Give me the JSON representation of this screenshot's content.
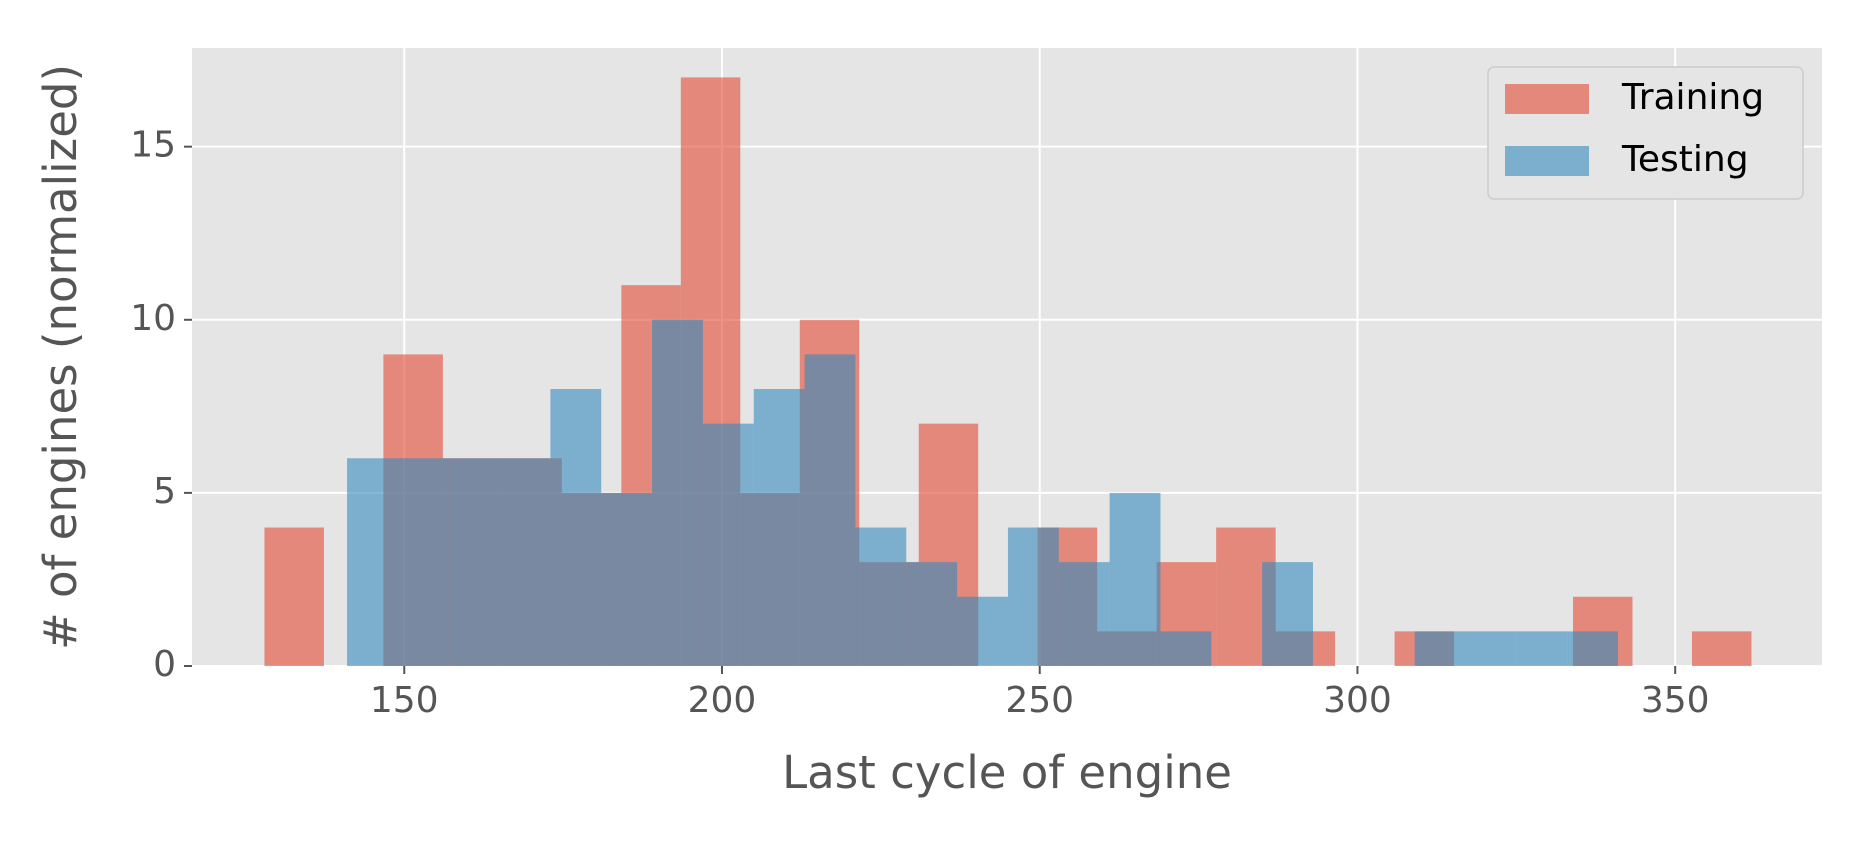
{
  "chart_data": {
    "type": "histogram",
    "xlabel": "Last cycle of engine",
    "ylabel": "# of engines (normalized)",
    "xlim": [
      116.6,
      373.1
    ],
    "xticks": [
      150,
      200,
      250,
      300,
      350
    ],
    "ylim": [
      0,
      17.85
    ],
    "yticks": [
      0,
      5,
      10,
      15
    ],
    "grid": true,
    "legend": "upper right",
    "series": [
      {
        "name": "Training",
        "color": "#E24A33",
        "bins": [
          128,
          137.36,
          146.72,
          156.08,
          165.44,
          174.8,
          184.16,
          193.52,
          202.88,
          212.24,
          221.6,
          230.96,
          240.32,
          249.68,
          259.04,
          268.4,
          277.76,
          287.12,
          296.48,
          305.84,
          315.2,
          324.56,
          333.92,
          343.28,
          352.64,
          362
        ],
        "values": [
          4,
          0,
          9,
          6,
          6,
          5,
          11,
          17,
          5,
          10,
          3,
          7,
          0,
          4,
          1,
          3,
          4,
          1,
          0,
          1,
          0,
          0,
          2,
          0,
          1
        ]
      },
      {
        "name": "Testing",
        "color": "#348ABD",
        "bins": [
          141,
          149,
          157,
          165,
          173,
          181,
          189,
          197,
          205,
          213,
          221,
          229,
          237,
          245,
          253,
          261,
          269,
          277,
          285,
          293,
          301,
          309,
          317,
          325,
          333,
          341
        ],
        "values": [
          6,
          6,
          6,
          6,
          8,
          5,
          10,
          7,
          8,
          9,
          4,
          3,
          2,
          4,
          3,
          5,
          1,
          0,
          3,
          0,
          0,
          1,
          1,
          1,
          1
        ]
      }
    ]
  }
}
